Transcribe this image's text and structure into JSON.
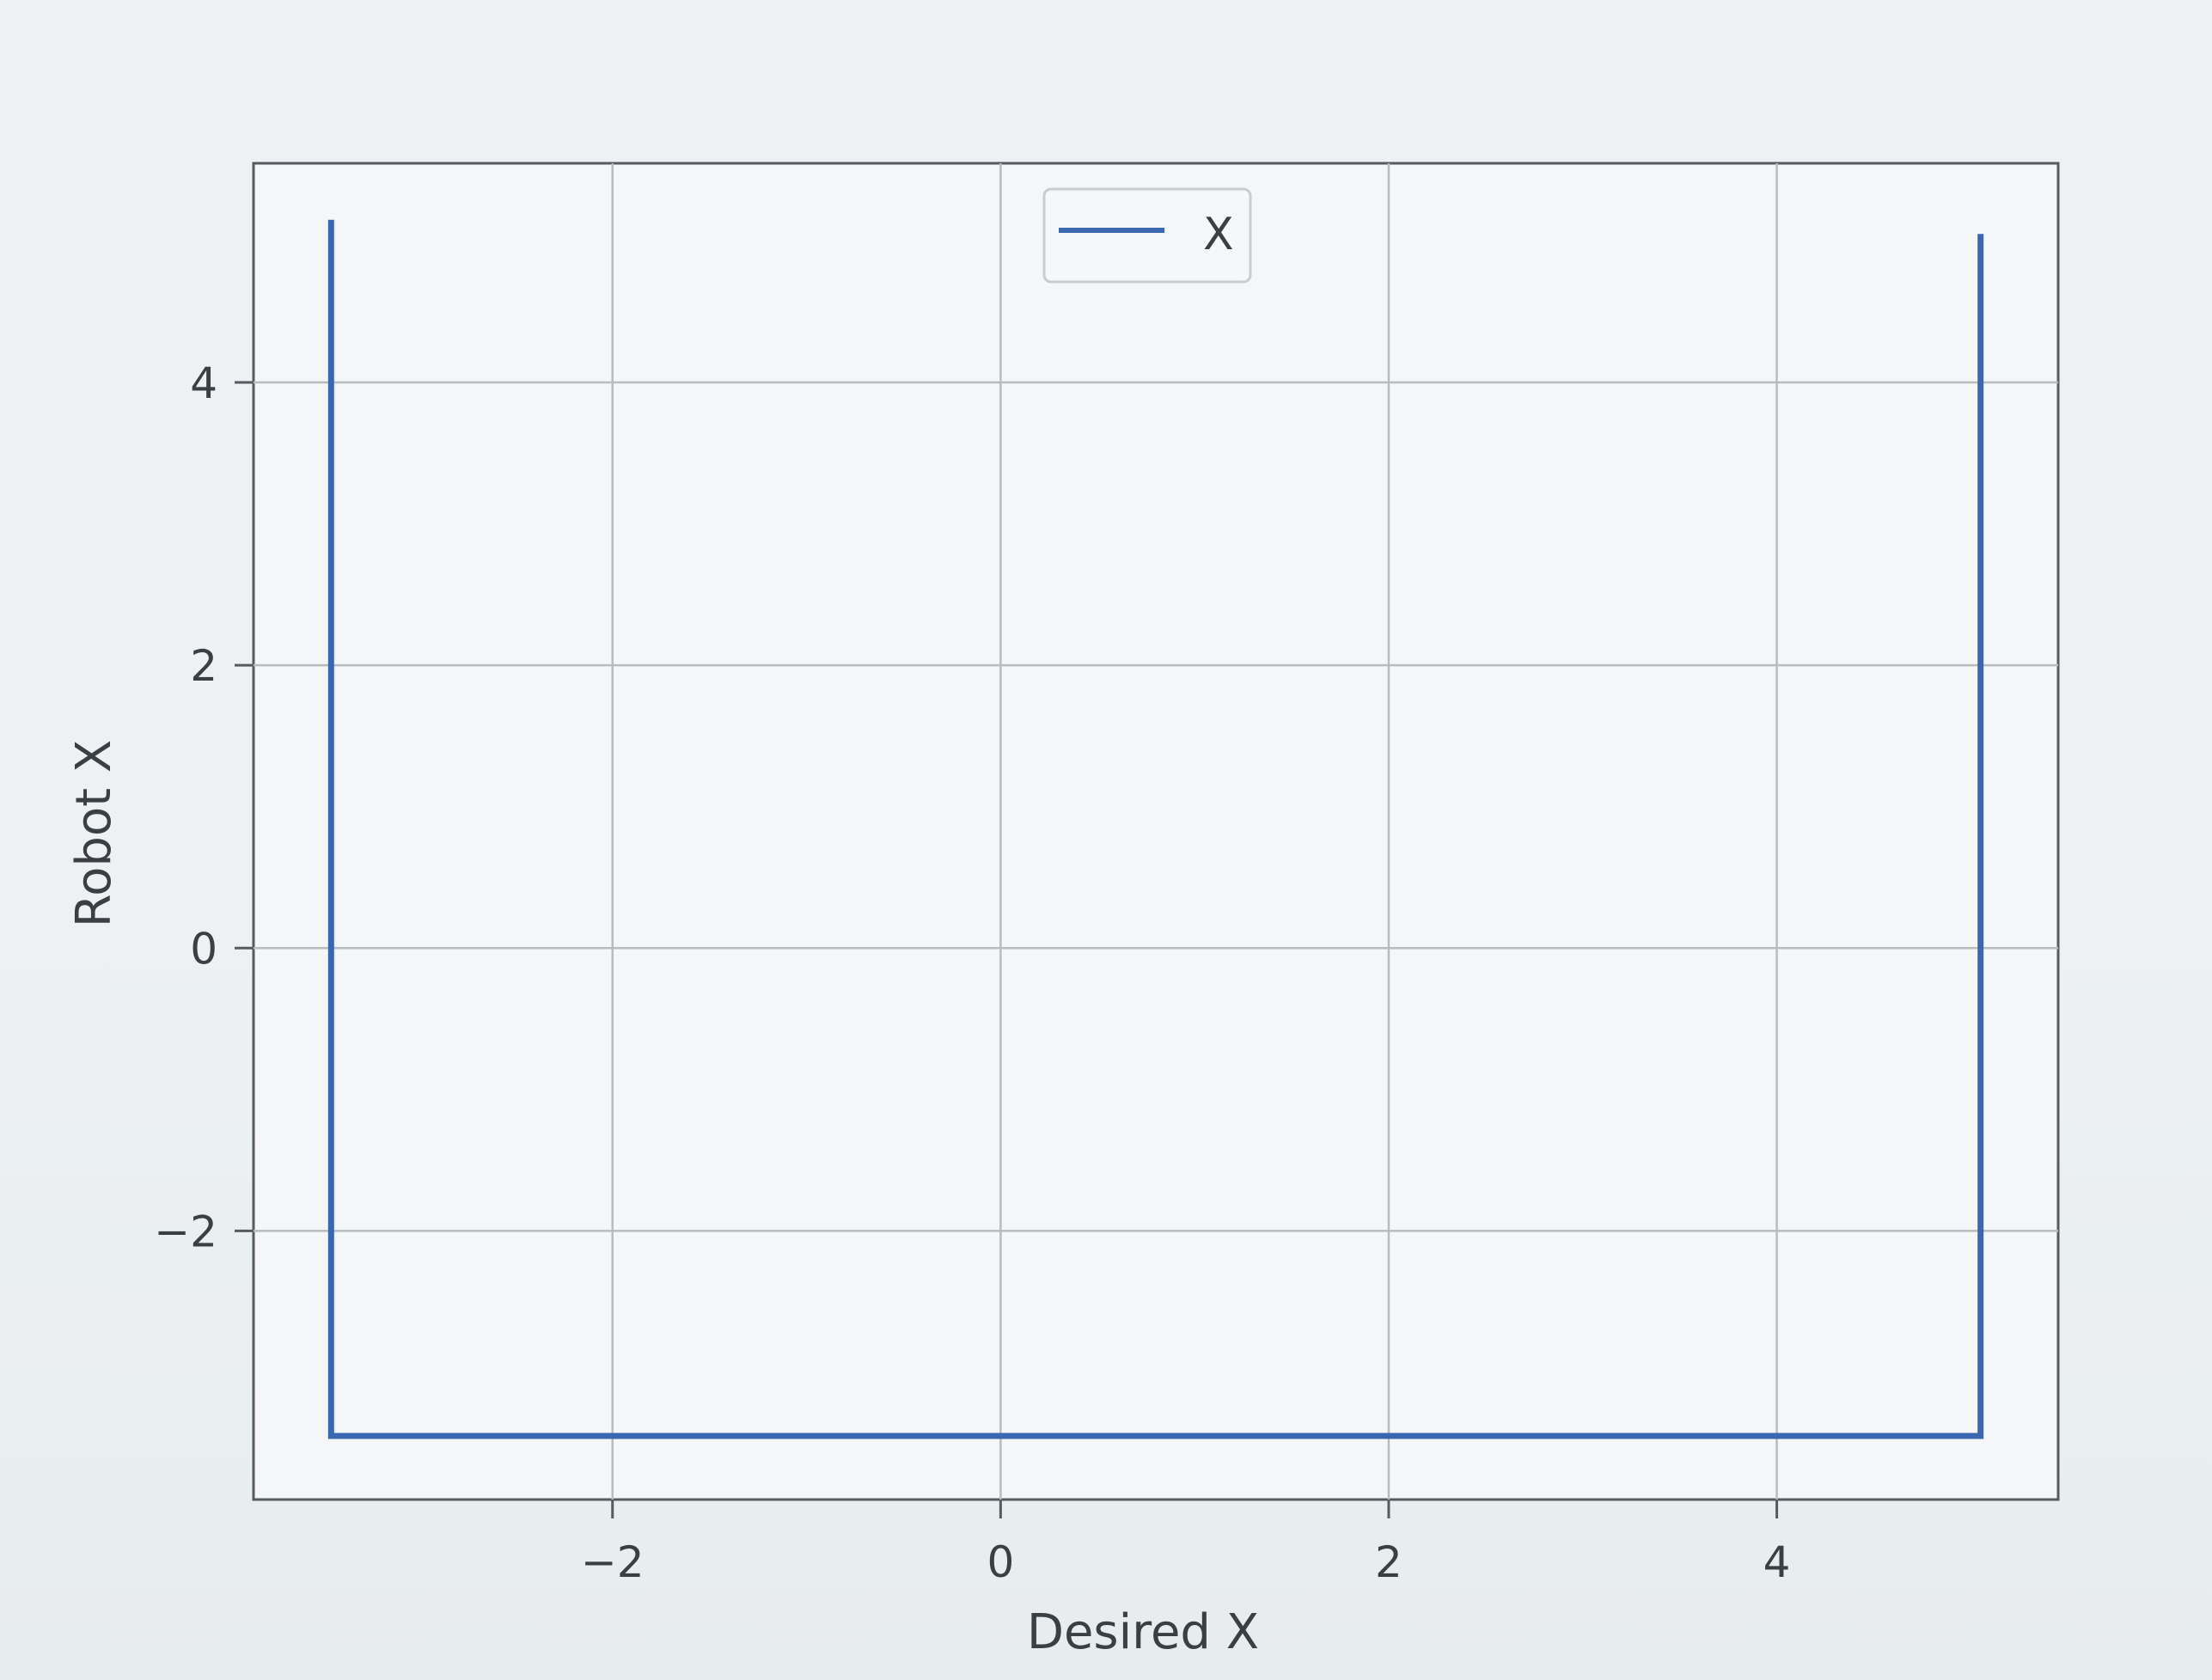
{
  "chart_data": {
    "type": "line",
    "title": "",
    "xlabel": "Desired X",
    "ylabel": "Robot X",
    "xlim": [
      -3.85,
      5.45
    ],
    "ylim": [
      -3.9,
      5.55
    ],
    "xticks": [
      -2,
      0,
      2,
      4
    ],
    "yticks": [
      -2,
      0,
      2,
      4
    ],
    "xtick_labels": [
      "−2",
      "0",
      "2",
      "4"
    ],
    "ytick_labels": [
      "−2",
      "0",
      "2",
      "4"
    ],
    "grid": true,
    "legend": {
      "position": "top-center",
      "entries": [
        "X"
      ]
    },
    "series": [
      {
        "name": "X",
        "color": "#3a67b0",
        "x": [
          -3.45,
          -3.45,
          5.05,
          5.05
        ],
        "y": [
          5.15,
          -3.45,
          -3.45,
          5.05
        ]
      }
    ]
  }
}
